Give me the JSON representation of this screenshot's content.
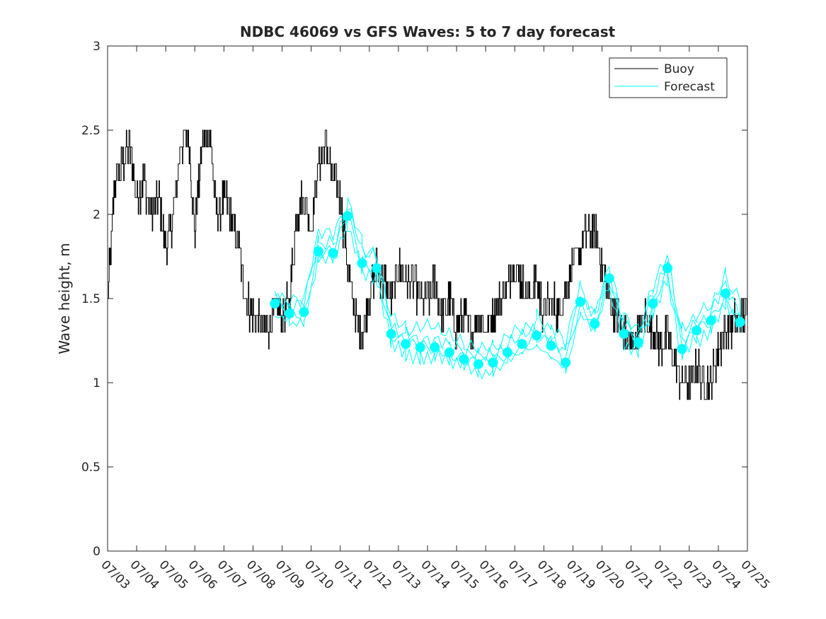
{
  "chart_data": {
    "type": "line",
    "title": "NDBC 46069 vs GFS Waves: 5 to 7 day forecast",
    "xlabel": "",
    "ylabel": "Wave height, m",
    "ylim": [
      0,
      3
    ],
    "yticks": [
      0,
      0.5,
      1,
      1.5,
      2,
      2.5,
      3
    ],
    "ytick_labels": [
      "0",
      "0.5",
      "1",
      "1.5",
      "2",
      "2.5",
      "3"
    ],
    "xlim": [
      "07/03",
      "07/25"
    ],
    "xtick_labels": [
      "07/03",
      "07/04",
      "07/05",
      "07/06",
      "07/07",
      "07/08",
      "07/09",
      "07/10",
      "07/11",
      "07/12",
      "07/13",
      "07/14",
      "07/15",
      "07/16",
      "07/17",
      "07/18",
      "07/19",
      "07/20",
      "07/21",
      "07/22",
      "07/23",
      "07/24",
      "07/25"
    ],
    "grid": false,
    "legend": {
      "location": "top-right",
      "entries": [
        {
          "label": "Buoy",
          "color": "#000000"
        },
        {
          "label": "Forecast",
          "color": "#00ffff"
        }
      ]
    },
    "series": [
      {
        "name": "Buoy",
        "color": "#000000",
        "x": [
          "07/03 00h",
          "07/03 06h",
          "07/03 12h",
          "07/03 18h",
          "07/04 00h",
          "07/04 06h",
          "07/04 12h",
          "07/04 18h",
          "07/05 00h",
          "07/05 06h",
          "07/05 12h",
          "07/05 18h",
          "07/06 00h",
          "07/06 06h",
          "07/06 12h",
          "07/06 18h",
          "07/07 00h",
          "07/07 06h",
          "07/07 12h",
          "07/07 18h",
          "07/08 00h",
          "07/08 06h",
          "07/08 12h",
          "07/08 18h",
          "07/09 00h",
          "07/09 06h",
          "07/09 12h",
          "07/09 18h",
          "07/10 00h",
          "07/10 06h",
          "07/10 12h",
          "07/10 18h",
          "07/11 00h",
          "07/11 06h",
          "07/11 12h",
          "07/11 18h",
          "07/12 00h",
          "07/12 06h",
          "07/12 12h",
          "07/12 18h",
          "07/13 00h",
          "07/13 06h",
          "07/13 12h",
          "07/13 18h",
          "07/14 00h",
          "07/14 06h",
          "07/14 12h",
          "07/14 18h",
          "07/15 00h",
          "07/15 06h",
          "07/15 12h",
          "07/15 18h",
          "07/16 00h",
          "07/16 06h",
          "07/16 12h",
          "07/16 18h",
          "07/17 00h",
          "07/17 06h",
          "07/17 12h",
          "07/17 18h",
          "07/18 00h",
          "07/18 06h",
          "07/18 12h",
          "07/18 18h",
          "07/19 00h",
          "07/19 06h",
          "07/19 12h",
          "07/19 18h",
          "07/20 00h",
          "07/20 06h",
          "07/20 12h",
          "07/20 18h",
          "07/21 00h",
          "07/21 06h",
          "07/21 12h",
          "07/21 18h",
          "07/22 00h",
          "07/22 06h",
          "07/22 12h",
          "07/22 18h",
          "07/23 00h",
          "07/23 06h",
          "07/23 12h",
          "07/23 18h",
          "07/24 00h",
          "07/24 06h",
          "07/24 12h",
          "07/24 18h"
        ],
        "values": [
          1.5,
          2.2,
          2.3,
          2.4,
          2.1,
          2.2,
          2.0,
          2.1,
          1.8,
          2.0,
          2.4,
          2.5,
          1.9,
          2.4,
          2.5,
          2.0,
          2.1,
          2.0,
          1.8,
          1.5,
          1.4,
          1.35,
          1.3,
          1.45,
          1.4,
          1.5,
          2.0,
          2.1,
          1.9,
          2.3,
          2.4,
          2.2,
          2.1,
          1.7,
          1.4,
          1.3,
          1.5,
          1.7,
          1.6,
          1.5,
          1.7,
          1.6,
          1.6,
          1.5,
          1.5,
          1.6,
          1.4,
          1.5,
          1.3,
          1.4,
          1.3,
          1.4,
          1.3,
          1.4,
          1.5,
          1.6,
          1.7,
          1.6,
          1.5,
          1.6,
          1.4,
          1.5,
          1.4,
          1.6,
          1.7,
          1.8,
          1.9,
          1.9,
          1.7,
          1.5,
          1.4,
          1.3,
          1.2,
          1.3,
          1.4,
          1.3,
          1.2,
          1.3,
          1.1,
          1.0,
          1.0,
          1.1,
          1.0,
          1.0,
          1.2,
          1.3,
          1.35,
          1.4
        ]
      },
      {
        "name": "Forecast",
        "color": "#00ffff",
        "x": [
          "07/08 18h",
          "07/09 06h",
          "07/09 18h",
          "07/10 06h",
          "07/10 18h",
          "07/11 06h",
          "07/11 18h",
          "07/12 06h",
          "07/12 18h",
          "07/13 06h",
          "07/13 18h",
          "07/14 06h",
          "07/14 18h",
          "07/15 06h",
          "07/15 18h",
          "07/16 06h",
          "07/16 18h",
          "07/17 06h",
          "07/17 18h",
          "07/18 06h",
          "07/18 18h",
          "07/19 06h",
          "07/19 18h",
          "07/20 06h",
          "07/20 18h",
          "07/21 06h",
          "07/21 18h",
          "07/22 06h",
          "07/22 18h",
          "07/23 06h",
          "07/23 18h",
          "07/24 06h",
          "07/24 18h"
        ],
        "values": [
          1.47,
          1.41,
          1.42,
          1.78,
          1.77,
          1.99,
          1.71,
          1.68,
          1.29,
          1.23,
          1.21,
          1.21,
          1.18,
          1.14,
          1.11,
          1.12,
          1.18,
          1.23,
          1.28,
          1.22,
          1.12,
          1.48,
          1.35,
          1.62,
          1.29,
          1.24,
          1.47,
          1.68,
          1.2,
          1.31,
          1.37,
          1.53,
          1.36
        ]
      }
    ]
  }
}
